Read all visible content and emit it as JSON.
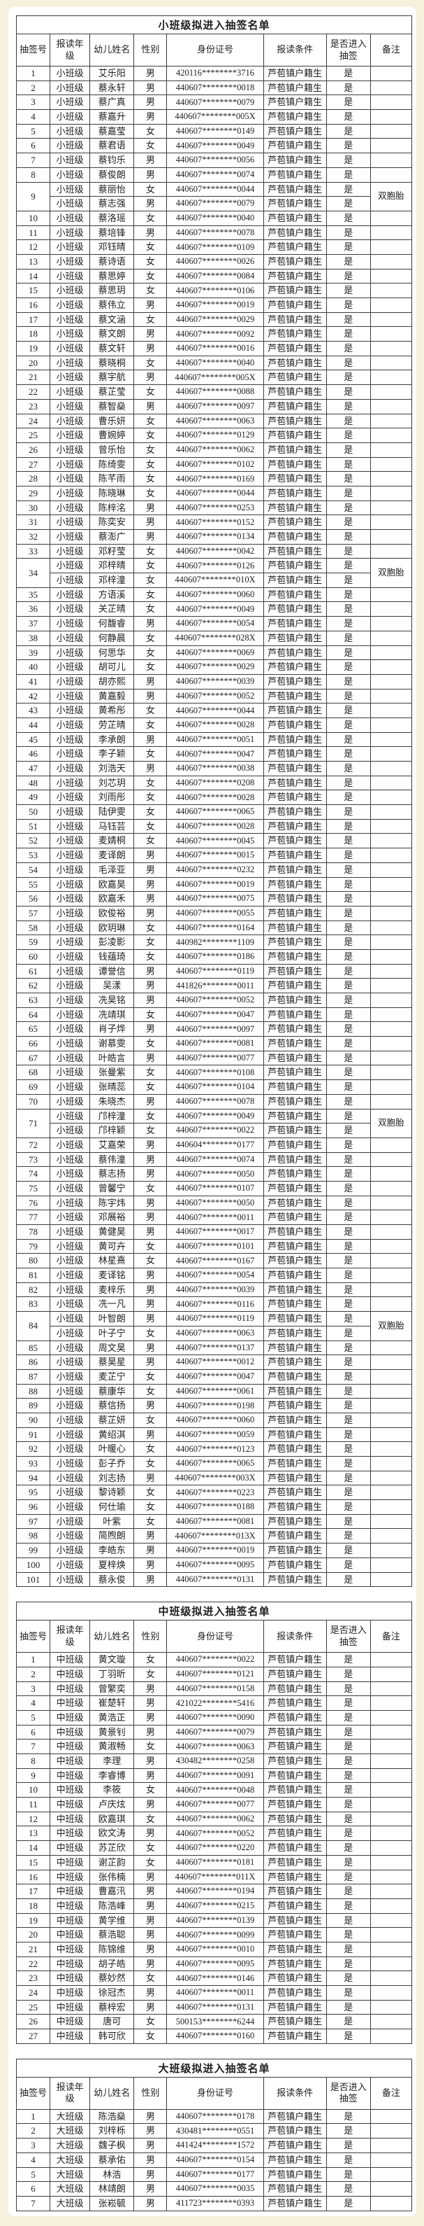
{
  "colors": {
    "page_bg": "#f6f1dc",
    "panel_bg": "#ffffff",
    "border": "#3c3c3c",
    "text": "#1f1f1f"
  },
  "columns": [
    "抽签号",
    "报读年级",
    "幼儿姓名",
    "性别",
    "身份证号",
    "报读条件",
    "是否进入抽签",
    "备注"
  ],
  "tables": [
    {
      "title": "小班级拟进入抽签名单",
      "grade": "小班级",
      "condition": "芦苞镇户籍生",
      "enter": "是",
      "twin_note": "双胞胎",
      "rows": [
        [
          "1",
          "艾乐阳",
          "男",
          "420116********3716"
        ],
        [
          "2",
          "蔡永轩",
          "男",
          "440607********0018"
        ],
        [
          "3",
          "蔡广真",
          "男",
          "440607********0079"
        ],
        [
          "4",
          "蔡嘉升",
          "男",
          "440607********005X"
        ],
        [
          "5",
          "蔡嘉莹",
          "女",
          "440607********0149"
        ],
        [
          "6",
          "蔡君语",
          "女",
          "440607********0049"
        ],
        [
          "7",
          "蔡钧乐",
          "男",
          "440607********0056"
        ],
        [
          "8",
          "蔡俊朗",
          "男",
          "440607********0074"
        ],
        {
          "no": "9",
          "note": "双胞胎",
          "twins": [
            [
              "蔡丽怡",
              "女",
              "440607********0044"
            ],
            [
              "蔡志强",
              "男",
              "440607********0079"
            ]
          ]
        },
        [
          "10",
          "蔡洛瑶",
          "女",
          "440607********0040"
        ],
        [
          "11",
          "蔡培锋",
          "男",
          "440607********0078"
        ],
        [
          "12",
          "邓钰晴",
          "女",
          "440607********0109"
        ],
        [
          "13",
          "蔡诗语",
          "女",
          "440607********0026"
        ],
        [
          "14",
          "蔡思婷",
          "女",
          "440607********0084"
        ],
        [
          "15",
          "蔡思玥",
          "女",
          "440607********0106"
        ],
        [
          "16",
          "蔡伟立",
          "男",
          "440607********0019"
        ],
        [
          "17",
          "蔡文涵",
          "女",
          "440607********0029"
        ],
        [
          "18",
          "蔡文朗",
          "男",
          "440607********0092"
        ],
        [
          "19",
          "蔡文轩",
          "男",
          "440607********0016"
        ],
        [
          "20",
          "蔡晓桐",
          "女",
          "440607********0040"
        ],
        [
          "21",
          "蔡宇航",
          "男",
          "440607********005X"
        ],
        [
          "22",
          "蔡芷莹",
          "女",
          "440607********0088"
        ],
        [
          "23",
          "蔡智燊",
          "男",
          "440607********0097"
        ],
        [
          "24",
          "曹乐妍",
          "女",
          "440607********0063"
        ],
        [
          "25",
          "曹婉婷",
          "女",
          "440607********0129"
        ],
        [
          "26",
          "曾乐怡",
          "女",
          "440607********0062"
        ],
        [
          "27",
          "陈绮雯",
          "女",
          "440607********0102"
        ],
        [
          "28",
          "陈芊雨",
          "女",
          "440607********0169"
        ],
        [
          "29",
          "陈晓琳",
          "女",
          "440607********0044"
        ],
        [
          "30",
          "陈梓洺",
          "男",
          "440607********0253"
        ],
        [
          "31",
          "陈奕安",
          "男",
          "440607********0152"
        ],
        [
          "32",
          "蔡澎广",
          "男",
          "440607********0134"
        ],
        [
          "33",
          "邓籽莹",
          "女",
          "440607********0042"
        ],
        {
          "no": "34",
          "note": "双胞胎",
          "twins": [
            [
              "邓梓晴",
              "女",
              "440607********0126"
            ],
            [
              "邓梓潼",
              "女",
              "440607********010X"
            ]
          ]
        },
        [
          "35",
          "方语溪",
          "女",
          "440607********0060"
        ],
        [
          "36",
          "关芷晴",
          "女",
          "440607********0049"
        ],
        [
          "37",
          "何馥睿",
          "男",
          "440607********0054"
        ],
        [
          "38",
          "何静晨",
          "女",
          "440607********028X"
        ],
        [
          "39",
          "何思华",
          "女",
          "440607********0069"
        ],
        [
          "40",
          "胡可儿",
          "女",
          "440607********0029"
        ],
        [
          "41",
          "胡亦熙",
          "男",
          "440607********0039"
        ],
        [
          "42",
          "黄嘉毅",
          "男",
          "440607********0052"
        ],
        [
          "43",
          "黄希彤",
          "女",
          "440607********0044"
        ],
        [
          "44",
          "劳芷晴",
          "女",
          "440607********0028"
        ],
        [
          "45",
          "李承朗",
          "男",
          "440607********0051"
        ],
        [
          "46",
          "李子颖",
          "女",
          "440607********0047"
        ],
        [
          "47",
          "刘浩天",
          "男",
          "440607********0038"
        ],
        [
          "48",
          "刘芯玥",
          "女",
          "440607********0208"
        ],
        [
          "49",
          "刘雨彤",
          "女",
          "440607********0028"
        ],
        [
          "50",
          "陆伊雯",
          "女",
          "440607********0065"
        ],
        [
          "51",
          "马钰芸",
          "女",
          "440607********0028"
        ],
        [
          "52",
          "麦婧桐",
          "女",
          "440607********0045"
        ],
        [
          "53",
          "麦译朗",
          "男",
          "440607********0015"
        ],
        [
          "54",
          "毛泽亚",
          "男",
          "440607********0232"
        ],
        [
          "55",
          "欧嘉昊",
          "男",
          "440607********0019"
        ],
        [
          "56",
          "欧嘉禾",
          "男",
          "440607********0075"
        ],
        [
          "57",
          "欧俊裕",
          "男",
          "440607********0055"
        ],
        [
          "58",
          "欧玥琳",
          "女",
          "440607********0164"
        ],
        [
          "59",
          "彭凌影",
          "女",
          "440982********1109"
        ],
        [
          "60",
          "钱蕴琦",
          "女",
          "440607********0186"
        ],
        [
          "61",
          "谭誉信",
          "男",
          "440607********0119"
        ],
        [
          "62",
          "吴漾",
          "男",
          "441826********0011"
        ],
        [
          "63",
          "冼昊铭",
          "男",
          "440607********0052"
        ],
        [
          "64",
          "冼靖琪",
          "女",
          "440607********0047"
        ],
        [
          "65",
          "肖子烨",
          "男",
          "440607********0097"
        ],
        [
          "66",
          "谢慕雯",
          "女",
          "440607********0081"
        ],
        [
          "67",
          "叶皓言",
          "男",
          "440607********0077"
        ],
        [
          "68",
          "张曼紫",
          "女",
          "440607********0108"
        ],
        [
          "69",
          "张晴蕊",
          "女",
          "440607********0104"
        ],
        [
          "70",
          "朱晓杰",
          "男",
          "440607********0078"
        ],
        {
          "no": "71",
          "note": "双胞胎",
          "twins": [
            [
              "邝梓潼",
              "女",
              "440607********0049"
            ],
            [
              "邝梓颖",
              "女",
              "440607********0022"
            ]
          ]
        },
        [
          "72",
          "艾嘉荣",
          "男",
          "440604********0177"
        ],
        [
          "73",
          "蔡伟潼",
          "男",
          "440607********0074"
        ],
        [
          "74",
          "蔡志扬",
          "男",
          "440607********0050"
        ],
        [
          "75",
          "曾馨宁",
          "女",
          "440607********0107"
        ],
        [
          "76",
          "陈宇炜",
          "男",
          "440607********0050"
        ],
        [
          "77",
          "邓展裕",
          "男",
          "440607********0011"
        ],
        [
          "78",
          "黄健昊",
          "男",
          "440607********0017"
        ],
        [
          "79",
          "黄可卉",
          "女",
          "440607********0101"
        ],
        [
          "80",
          "林星熹",
          "女",
          "440607********0167"
        ],
        [
          "81",
          "麦译铭",
          "男",
          "440607********0054"
        ],
        [
          "82",
          "麦梓乐",
          "男",
          "440607********0039"
        ],
        [
          "83",
          "冼一凡",
          "男",
          "440607********0116"
        ],
        {
          "no": "84",
          "note": "双胞胎",
          "twins": [
            [
              "叶智朗",
              "男",
              "440607********0119"
            ],
            [
              "叶子宁",
              "女",
              "440607********0063"
            ]
          ]
        },
        [
          "85",
          "周文昊",
          "男",
          "440607********0137"
        ],
        [
          "86",
          "蔡昊星",
          "男",
          "440607********0012"
        ],
        [
          "87",
          "麦芷宁",
          "女",
          "440607********0047"
        ],
        [
          "88",
          "蔡康华",
          "女",
          "440607********0061"
        ],
        [
          "89",
          "蔡信扬",
          "男",
          "440607********0198"
        ],
        [
          "90",
          "蔡芷妍",
          "女",
          "440607********0060"
        ],
        [
          "91",
          "黄绍淇",
          "男",
          "440607********0059"
        ],
        [
          "92",
          "叶暖心",
          "女",
          "440607********0123"
        ],
        [
          "93",
          "彭子乔",
          "女",
          "440607********0065"
        ],
        [
          "94",
          "刘志扬",
          "男",
          "440607********003X"
        ],
        [
          "95",
          "黎诗颖",
          "女",
          "440607********0223"
        ],
        [
          "96",
          "何仕瑜",
          "女",
          "440607********0188"
        ],
        [
          "97",
          "叶紫",
          "女",
          "440607********0081"
        ],
        [
          "98",
          "简煦朗",
          "男",
          "440607********013X"
        ],
        [
          "99",
          "李皓东",
          "男",
          "440607********0019"
        ],
        [
          "100",
          "夏梓焕",
          "男",
          "440607********0095"
        ],
        [
          "101",
          "蔡永俊",
          "男",
          "440607********0131"
        ]
      ]
    },
    {
      "title": "中班级拟进入抽签名单",
      "grade": "中班级",
      "condition": "芦苞镇户籍生",
      "enter": "是",
      "twin_note": "双胞胎",
      "rows": [
        [
          "1",
          "黄文璇",
          "女",
          "440607********0022"
        ],
        [
          "2",
          "丁羽昕",
          "女",
          "440607********0121"
        ],
        [
          "3",
          "曾繁奕",
          "男",
          "440607********0158"
        ],
        [
          "4",
          "崔楚轩",
          "男",
          "421022********5416"
        ],
        [
          "5",
          "黄浩正",
          "男",
          "440607********0090"
        ],
        [
          "6",
          "黄景钊",
          "男",
          "440607********0079"
        ],
        [
          "7",
          "黄淑畅",
          "女",
          "440607********0063"
        ],
        [
          "8",
          "李理",
          "男",
          "430482********0258"
        ],
        [
          "9",
          "李睿博",
          "男",
          "440607********0091"
        ],
        [
          "10",
          "李筱",
          "女",
          "440607********0048"
        ],
        [
          "11",
          "卢庆炫",
          "男",
          "440607********0077"
        ],
        [
          "12",
          "欧嘉琪",
          "女",
          "440607********0062"
        ],
        [
          "13",
          "欧文涛",
          "男",
          "440607********0052"
        ],
        [
          "14",
          "苏芷欣",
          "女",
          "440607********0220"
        ],
        [
          "15",
          "谢芷韵",
          "女",
          "440607********0181"
        ],
        [
          "16",
          "张伟楠",
          "男",
          "440607********011X"
        ],
        [
          "17",
          "曹嘉汛",
          "男",
          "440607********0194"
        ],
        [
          "18",
          "陈浩峰",
          "男",
          "440607********0215"
        ],
        [
          "19",
          "黄学维",
          "男",
          "440607********0139"
        ],
        [
          "20",
          "蔡浩聪",
          "男",
          "440607********0099"
        ],
        [
          "21",
          "陈锦维",
          "男",
          "440607********0010"
        ],
        [
          "22",
          "胡子皓",
          "男",
          "440607********0095"
        ],
        [
          "23",
          "蔡妙然",
          "女",
          "440607********0146"
        ],
        [
          "24",
          "徐冠杰",
          "男",
          "440607********0011"
        ],
        [
          "25",
          "蔡梓宏",
          "男",
          "440607********0131"
        ],
        [
          "26",
          "唐可",
          "女",
          "500153********6244"
        ],
        [
          "27",
          "韩可欣",
          "女",
          "440607********0160"
        ]
      ]
    },
    {
      "title": "大班级拟进入抽签名单",
      "grade": "大班级",
      "condition": "芦苞镇户籍生",
      "enter": "是",
      "twin_note": "双胞胎",
      "rows": [
        [
          "1",
          "陈浩燊",
          "男",
          "440607********0178"
        ],
        [
          "2",
          "刘梓栎",
          "男",
          "430481********0551"
        ],
        [
          "3",
          "魏子枫",
          "男",
          "441424********1572"
        ],
        [
          "4",
          "蔡承佑",
          "男",
          "440607********0154"
        ],
        [
          "5",
          "林浩",
          "男",
          "440607********0177"
        ],
        [
          "6",
          "林靖朗",
          "男",
          "440607********0035"
        ],
        [
          "7",
          "张崧毓",
          "男",
          "411723********0393"
        ]
      ]
    }
  ]
}
